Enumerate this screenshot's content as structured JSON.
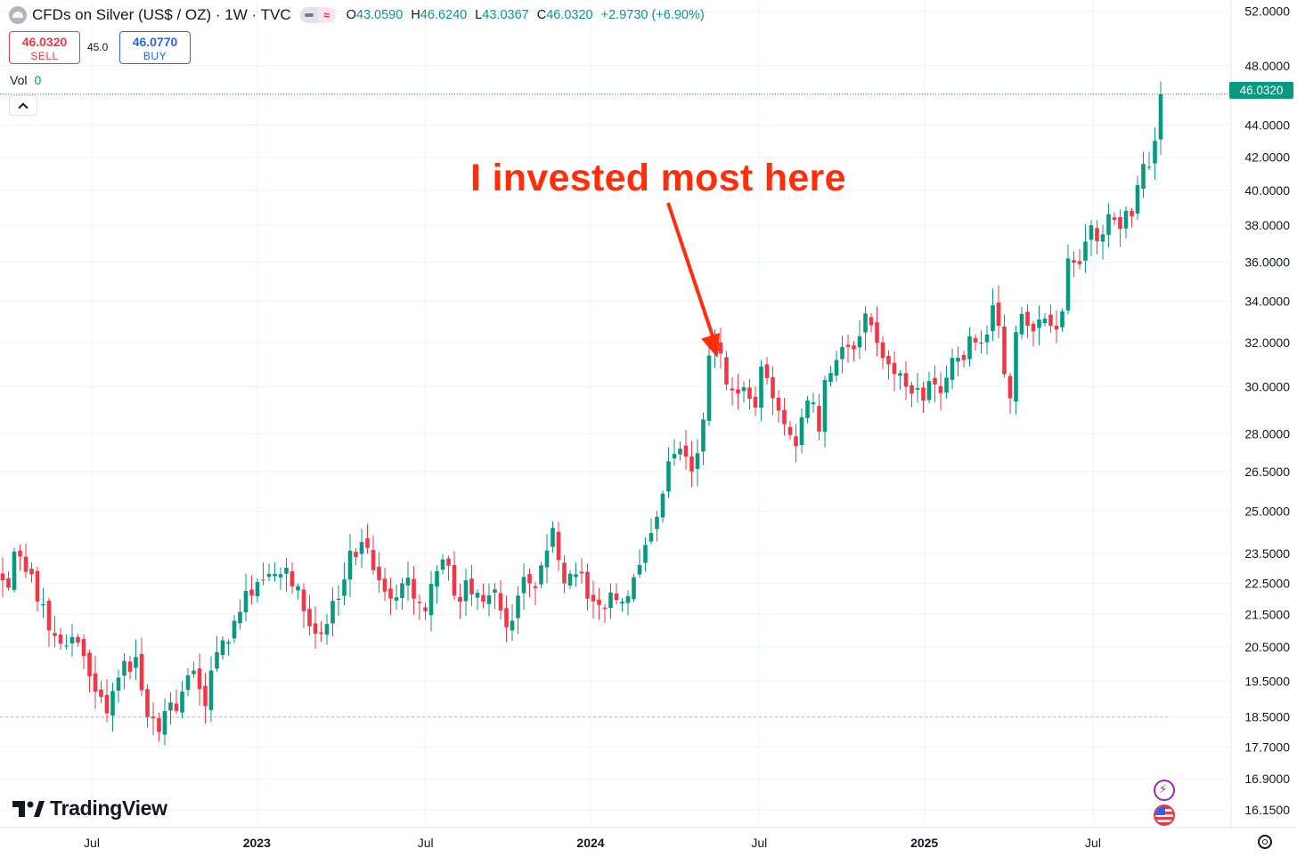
{
  "header": {
    "title": "CFDs on Silver (US$ / OZ) · 1W · TVC",
    "ohlc": [
      {
        "key": "O",
        "value": "43.0590"
      },
      {
        "key": "H",
        "value": "46.6240"
      },
      {
        "key": "L",
        "value": "43.0367"
      },
      {
        "key": "C",
        "value": "46.0320"
      }
    ],
    "change": "+2.9730 (+6.90%)"
  },
  "trade": {
    "sell_price": "46.0320",
    "sell_label": "SELL",
    "spread": "45.0",
    "buy_price": "46.0770",
    "buy_label": "BUY"
  },
  "volume": {
    "label": "Vol",
    "value": "0"
  },
  "last_price_tag": "46.0320",
  "annotation": "I invested most here",
  "logo": "TradingView",
  "colors": {
    "up": "#089981",
    "down": "#f23645",
    "annotation": "#ff2d0a"
  },
  "icons": [
    "collapse-chevron-up-icon",
    "lightning-icon",
    "us-flag-icon",
    "gear-icon"
  ],
  "chart_data": {
    "type": "candlestick",
    "scale": "log",
    "grid": true,
    "ylim": [
      15.9,
      52.5
    ],
    "y_ticks": [
      52,
      48,
      44,
      42,
      40,
      38,
      36,
      34,
      32,
      30,
      28,
      26.5,
      25,
      23.5,
      22.5,
      21.5,
      20.5,
      19.5,
      18.5,
      17.7,
      16.9,
      16.15
    ],
    "y_tick_labels": [
      "52.0000",
      "48.0000",
      "44.0000",
      "42.0000",
      "40.0000",
      "38.0000",
      "36.0000",
      "34.0000",
      "32.0000",
      "30.0000",
      "28.0000",
      "26.5000",
      "25.0000",
      "23.5000",
      "22.5000",
      "21.5000",
      "20.5000",
      "19.5000",
      "18.5000",
      "17.7000",
      "16.9000",
      "16.1500"
    ],
    "x_ticks": [
      {
        "label": "Jul",
        "bold": false
      },
      {
        "label": "2023",
        "bold": true
      },
      {
        "label": "Jul",
        "bold": false
      },
      {
        "label": "2024",
        "bold": true
      },
      {
        "label": "Jul",
        "bold": false
      },
      {
        "label": "2025",
        "bold": true
      },
      {
        "label": "Jul",
        "bold": false
      }
    ],
    "last_price": 46.032,
    "reference_price": 18.5,
    "annotation_target_week": 125,
    "anchors": [
      [
        0,
        22.6
      ],
      [
        3,
        23.4
      ],
      [
        5,
        22.8
      ],
      [
        8,
        21.0
      ],
      [
        10,
        20.6
      ],
      [
        12,
        20.8
      ],
      [
        16,
        19.2
      ],
      [
        18,
        18.6
      ],
      [
        20,
        19.6
      ],
      [
        23,
        20.2
      ],
      [
        25,
        18.5
      ],
      [
        27,
        18.1
      ],
      [
        29,
        18.9
      ],
      [
        31,
        19.2
      ],
      [
        33,
        19.8
      ],
      [
        35,
        18.8
      ],
      [
        38,
        20.7
      ],
      [
        40,
        21.3
      ],
      [
        43,
        22.1
      ],
      [
        45,
        22.6
      ],
      [
        48,
        22.8
      ],
      [
        50,
        22.4
      ],
      [
        52,
        21.6
      ],
      [
        54,
        20.9
      ],
      [
        56,
        21.2
      ],
      [
        58,
        22.0
      ],
      [
        60,
        23.6
      ],
      [
        62,
        23.9
      ],
      [
        63,
        23.7
      ],
      [
        65,
        22.6
      ],
      [
        67,
        22.0
      ],
      [
        69,
        22.5
      ],
      [
        71,
        22.0
      ],
      [
        73,
        21.6
      ],
      [
        75,
        22.9
      ],
      [
        76,
        23.3
      ],
      [
        78,
        22.1
      ],
      [
        80,
        22.6
      ],
      [
        83,
        21.9
      ],
      [
        85,
        22.3
      ],
      [
        87,
        21.1
      ],
      [
        89,
        22.1
      ],
      [
        91,
        22.5
      ],
      [
        93,
        23.1
      ],
      [
        95,
        24.4
      ],
      [
        97,
        22.5
      ],
      [
        99,
        22.8
      ],
      [
        101,
        22.0
      ],
      [
        103,
        21.8
      ],
      [
        105,
        22.2
      ],
      [
        107,
        21.9
      ],
      [
        109,
        22.7
      ],
      [
        111,
        23.8
      ],
      [
        113,
        24.8
      ],
      [
        115,
        26.9
      ],
      [
        117,
        27.4
      ],
      [
        119,
        26.5
      ],
      [
        121,
        28.6
      ],
      [
        122,
        31.4
      ],
      [
        124,
        31.5
      ],
      [
        125,
        30.1
      ],
      [
        127,
        29.7
      ],
      [
        130,
        29.1
      ],
      [
        131,
        30.9
      ],
      [
        133,
        29.5
      ],
      [
        135,
        28.4
      ],
      [
        137,
        27.5
      ],
      [
        139,
        29.4
      ],
      [
        141,
        28.1
      ],
      [
        142,
        30.3
      ],
      [
        144,
        31.2
      ],
      [
        146,
        31.8
      ],
      [
        148,
        32.3
      ],
      [
        149,
        33.4
      ],
      [
        151,
        32.0
      ],
      [
        153,
        31.0
      ],
      [
        155,
        30.6
      ],
      [
        157,
        29.7
      ],
      [
        159,
        29.4
      ],
      [
        161,
        30.1
      ],
      [
        163,
        30.4
      ],
      [
        165,
        31.3
      ],
      [
        167,
        32.3
      ],
      [
        169,
        32.0
      ],
      [
        171,
        33.8
      ],
      [
        172,
        32.8
      ],
      [
        174,
        29.5
      ],
      [
        175,
        32.5
      ],
      [
        177,
        32.8
      ],
      [
        179,
        33.1
      ],
      [
        181,
        32.8
      ],
      [
        183,
        33.5
      ],
      [
        184,
        36.2
      ],
      [
        186,
        35.9
      ],
      [
        188,
        38.0
      ],
      [
        190,
        37.5
      ],
      [
        192,
        38.3
      ],
      [
        193,
        37.8
      ],
      [
        195,
        38.5
      ],
      [
        196,
        40.3
      ],
      [
        198,
        41.4
      ],
      [
        199,
        43.0
      ],
      [
        200,
        46.032
      ]
    ]
  }
}
